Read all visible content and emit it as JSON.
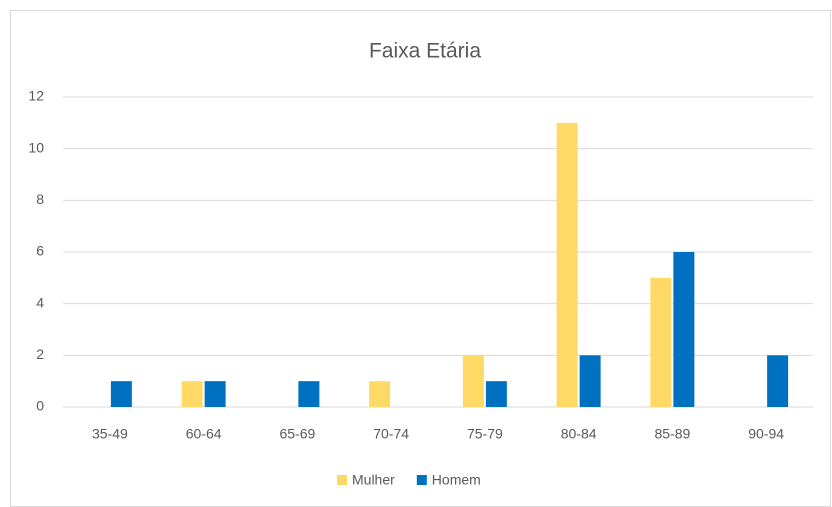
{
  "chart_data": {
    "type": "bar",
    "title": "Faixa Etária",
    "categories": [
      "35-49",
      "60-64",
      "65-69",
      "70-74",
      "75-79",
      "80-84",
      "85-89",
      "90-94"
    ],
    "series": [
      {
        "name": "Mulher",
        "color": "#ffd966",
        "values": [
          0,
          1,
          0,
          1,
          2,
          11,
          5,
          0
        ]
      },
      {
        "name": "Homem",
        "color": "#0070c0",
        "values": [
          1,
          1,
          1,
          0,
          1,
          2,
          6,
          2
        ]
      }
    ],
    "ylim": [
      0,
      12
    ],
    "yticks": [
      0,
      2,
      4,
      6,
      8,
      10,
      12
    ],
    "grid": true,
    "legend": "bottom"
  }
}
